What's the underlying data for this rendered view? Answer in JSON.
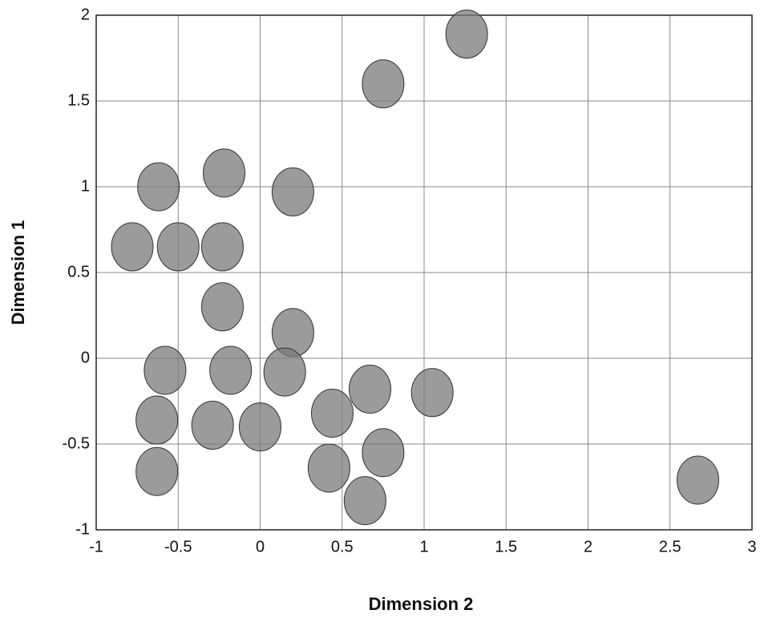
{
  "chart_data": {
    "type": "scatter",
    "x_label": "Dimension 2",
    "y_label": "Dimension 1",
    "x": [
      1.26,
      0.75,
      -0.62,
      -0.22,
      0.2,
      -0.78,
      -0.5,
      -0.23,
      -0.23,
      0.2,
      -0.58,
      -0.18,
      0.15,
      0.67,
      1.05,
      0.44,
      -0.63,
      -0.29,
      0.0,
      0.75,
      0.42,
      0.64,
      -0.63,
      2.67
    ],
    "values": [
      1.89,
      1.6,
      1.0,
      1.08,
      0.97,
      0.65,
      0.65,
      0.65,
      0.3,
      0.15,
      -0.07,
      -0.07,
      -0.08,
      -0.18,
      -0.2,
      -0.32,
      -0.36,
      -0.39,
      -0.4,
      -0.55,
      -0.64,
      -0.83,
      -0.66,
      -0.71
    ],
    "color": "#7a7a7a",
    "xlim": [
      -1,
      3
    ],
    "xticks": [
      -1,
      -0.5,
      0,
      0.5,
      1,
      1.5,
      2,
      2.5,
      3
    ],
    "ylim": [
      -1,
      2
    ],
    "yticks": [
      -1,
      -0.5,
      0,
      0.5,
      1,
      1.5,
      2
    ],
    "grid": true
  }
}
